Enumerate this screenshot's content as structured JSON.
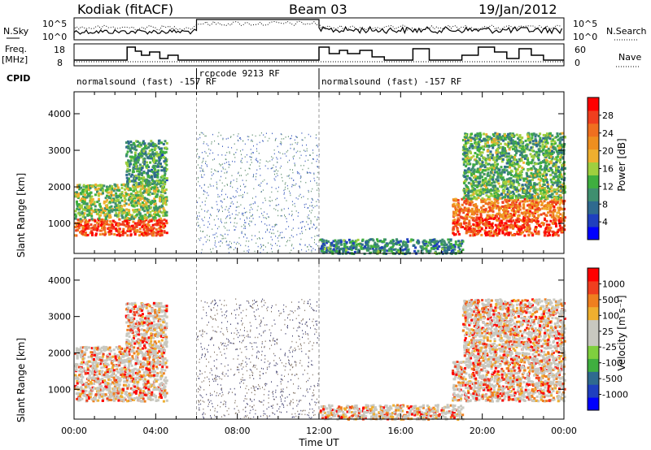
{
  "header": {
    "station": "Kodiak (fitACF)",
    "beam": "Beam 03",
    "date": "19/Jan/2012"
  },
  "summary": {
    "left_labels": [
      "N.Sky",
      "Freq.",
      "[MHz]",
      "CPID"
    ],
    "right_labels": [
      "N.Search",
      "Nave"
    ],
    "nsky_ticks": [
      "10^5",
      "10^0"
    ],
    "nsearch_ticks": [
      "10^5",
      "10^0"
    ],
    "freq_ticks": [
      "18",
      "8"
    ],
    "nave_ticks": [
      "60",
      "0"
    ],
    "cpid_segments": [
      {
        "text": "normalsound (fast) -157 RF",
        "start": 0,
        "end": 6
      },
      {
        "text": "rcpcode 9213 RF",
        "start": 6,
        "end": 12
      },
      {
        "text": "normalsound (fast) -157 RF",
        "start": 12,
        "end": 24
      }
    ]
  },
  "colors": {
    "power_scale": [
      "#0000ff",
      "#1f3fbf",
      "#2f6a8f",
      "#3f8f6f",
      "#3faf3f",
      "#9fcf3f",
      "#efaf2f",
      "#ef8f1f",
      "#ef6f1f",
      "#ef3f1f",
      "#ff0000"
    ],
    "velocity_scale": [
      "#ff0000",
      "#ef3f1f",
      "#ef7f1f",
      "#efaf2f",
      "#c8c8c0",
      "#c8c8c0",
      "#7fcf3f",
      "#3faf3f",
      "#2f6a8f",
      "#1f3fbf",
      "#0000ff"
    ],
    "ground_scatter": "#c8c8c0"
  },
  "chart_data": [
    {
      "type": "heatmap",
      "title": "Power",
      "ylabel": "Slant Range [km]",
      "xlabel": "Time UT",
      "colorbar_label": "Power [dB]",
      "colorbar_ticks": [
        "28",
        "24",
        "20",
        "16",
        "12",
        "8",
        "4"
      ],
      "ylim": [
        180,
        4600
      ],
      "xlim": [
        0,
        24
      ],
      "y_ticks": [
        "1000",
        "2000",
        "3000",
        "4000"
      ],
      "x_ticks": [
        "00:00",
        "04:00",
        "08:00",
        "12:00",
        "16:00",
        "20:00",
        "00:00"
      ],
      "regions": [
        {
          "t0": 0.0,
          "t1": 4.5,
          "r0": 700,
          "r1": 1150,
          "level": 0.85
        },
        {
          "t0": 0.0,
          "t1": 4.5,
          "r0": 1150,
          "r1": 2100,
          "level": 0.45
        },
        {
          "t0": 2.5,
          "t1": 4.5,
          "r0": 2100,
          "r1": 3300,
          "level": 0.35
        },
        {
          "t0": 6.0,
          "t1": 12.0,
          "r0": 200,
          "r1": 3500,
          "level": 0.15
        },
        {
          "t0": 12.0,
          "t1": 19.0,
          "r0": 200,
          "r1": 600,
          "level": 0.3
        },
        {
          "t0": 18.5,
          "t1": 24.0,
          "r0": 700,
          "r1": 1200,
          "level": 0.85
        },
        {
          "t0": 18.5,
          "t1": 24.0,
          "r0": 1200,
          "r1": 1700,
          "level": 0.75
        },
        {
          "t0": 19.0,
          "t1": 24.0,
          "r0": 1700,
          "r1": 3500,
          "level": 0.4
        }
      ]
    },
    {
      "type": "heatmap",
      "title": "Velocity",
      "ylabel": "Slant Range [km]",
      "xlabel": "Time UT",
      "colorbar_label": "Velocity [m s⁻¹]",
      "colorbar_ticks": [
        "1000",
        "500",
        "100",
        "25",
        "-25",
        "-100",
        "-500",
        "-1000"
      ],
      "ylim": [
        180,
        4600
      ],
      "xlim": [
        0,
        24
      ],
      "y_ticks": [
        "1000",
        "2000",
        "3000",
        "4000"
      ],
      "x_ticks": [
        "00:00",
        "04:00",
        "08:00",
        "12:00",
        "16:00",
        "20:00",
        "00:00"
      ],
      "regions": [
        {
          "t0": 0.0,
          "t1": 4.5,
          "r0": 700,
          "r1": 1400,
          "level": 0.45
        },
        {
          "t0": 0.0,
          "t1": 4.5,
          "r0": 1400,
          "r1": 2200,
          "level": 0.3
        },
        {
          "t0": 2.5,
          "t1": 4.5,
          "r0": 2200,
          "r1": 3400,
          "level": 0.45
        },
        {
          "t0": 6.0,
          "t1": 12.0,
          "r0": 200,
          "r1": 3500,
          "level": 0.2
        },
        {
          "t0": 12.0,
          "t1": 19.0,
          "r0": 200,
          "r1": 600,
          "level": 0.3
        },
        {
          "t0": 18.5,
          "t1": 24.0,
          "r0": 700,
          "r1": 1800,
          "level": 0.5
        },
        {
          "t0": 19.0,
          "t1": 24.0,
          "r0": 1800,
          "r1": 3500,
          "level": 0.3
        }
      ]
    }
  ]
}
